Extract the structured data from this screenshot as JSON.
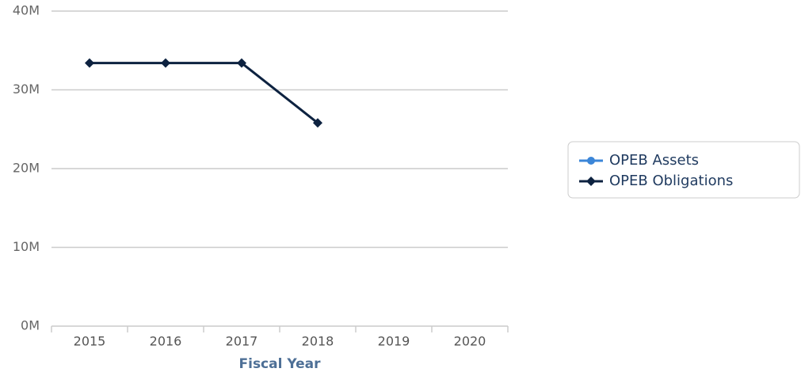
{
  "chart_data": {
    "type": "line",
    "x_label": "Fiscal Year",
    "categories": [
      "2015",
      "2016",
      "2017",
      "2018",
      "2019",
      "2020"
    ],
    "series": [
      {
        "name": "OPEB Assets",
        "color": "#3b86d8",
        "marker": "circle",
        "values": [
          null,
          null,
          null,
          null,
          null,
          null
        ]
      },
      {
        "name": "OPEB Obligations",
        "color": "#0d2240",
        "marker": "diamond",
        "values": [
          33400000,
          33400000,
          33400000,
          25800000,
          null,
          null
        ]
      }
    ],
    "ylim": [
      0,
      40000000
    ],
    "yticks": [
      {
        "value": 0,
        "label": "0M"
      },
      {
        "value": 10000000,
        "label": "10M"
      },
      {
        "value": 20000000,
        "label": "20M"
      },
      {
        "value": 30000000,
        "label": "30M"
      },
      {
        "value": 40000000,
        "label": "40M"
      }
    ],
    "grid": true,
    "legend": "right"
  }
}
